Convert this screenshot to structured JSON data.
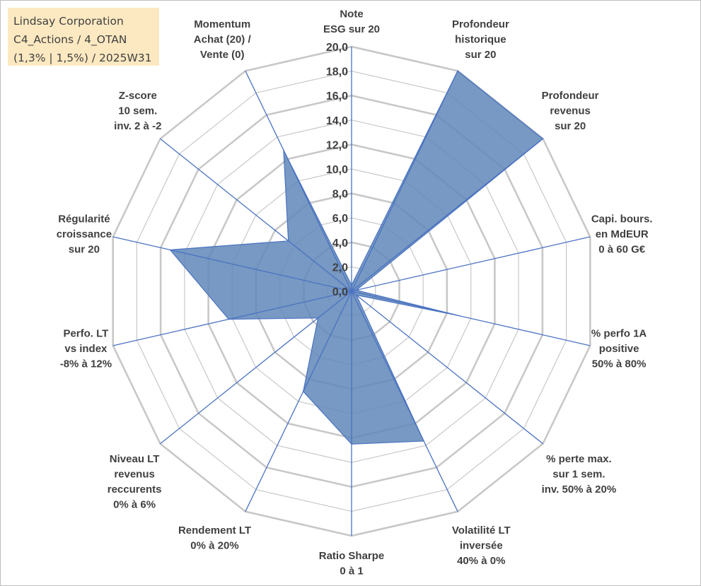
{
  "title_box": {
    "line1": "Lindsay Corporation",
    "line2": "C4_Actions / 4_OTAN",
    "line3": "(1,3% | 1,5%) / 2025W31"
  },
  "chart_data": {
    "type": "radar",
    "title": "Lindsay Corporation C4_Actions / 4_OTAN (1,3% | 1,5%) / 2025W31",
    "range": [
      0,
      20
    ],
    "ticks": [
      "0,0",
      "2,0",
      "4,0",
      "6,0",
      "8,0",
      "10,0",
      "12,0",
      "14,0",
      "16,0",
      "18,0",
      "20,0"
    ],
    "axes": [
      [
        "Note",
        "ESG sur 20"
      ],
      [
        "Profondeur",
        "historique",
        "sur 20"
      ],
      [
        "Profondeur",
        "revenus",
        "sur 20"
      ],
      [
        "Capi. bours.",
        "en MdEUR",
        "0 à 60 G€"
      ],
      [
        "% perfo 1A",
        "positive",
        "50% à 80%"
      ],
      [
        "% perte max.",
        "sur 1 sem.",
        "inv. 50% à 20%"
      ],
      [
        "Volatilité LT",
        "inversée",
        "40% à 0%"
      ],
      [
        "Ratio Sharpe",
        "0 à 1"
      ],
      [
        "Rendement LT",
        "0% à 20%"
      ],
      [
        "Niveau LT",
        "revenus",
        "reccurents",
        "0% à 6%"
      ],
      [
        "Perfo. LT",
        "vs index",
        "-8% à 12%"
      ],
      [
        "Régularité",
        "croissance",
        "sur 20"
      ],
      [
        "Z-score",
        "10 sem.",
        "inv. 2 à -2"
      ],
      [
        "Momentum",
        "Achat (20) /",
        "Vente (0)"
      ]
    ],
    "values": [
      0.5,
      20.0,
      20.0,
      0.4,
      9.0,
      0.5,
      13.6,
      12.5,
      9.1,
      3.5,
      10.3,
      15.2,
      6.6,
      12.8
    ],
    "series": [
      {
        "values": [
          0.5,
          20.0,
          20.0,
          0.4,
          9.0,
          0.5,
          13.6,
          12.5,
          9.1,
          3.5,
          10.3,
          15.2,
          6.6,
          12.8
        ]
      }
    ],
    "colors": {
      "fill": "#5f87b8",
      "stroke": "#4a72c2",
      "grid": "#c8c8c8",
      "spoke": "#4a72c2",
      "text": "#404040"
    }
  }
}
